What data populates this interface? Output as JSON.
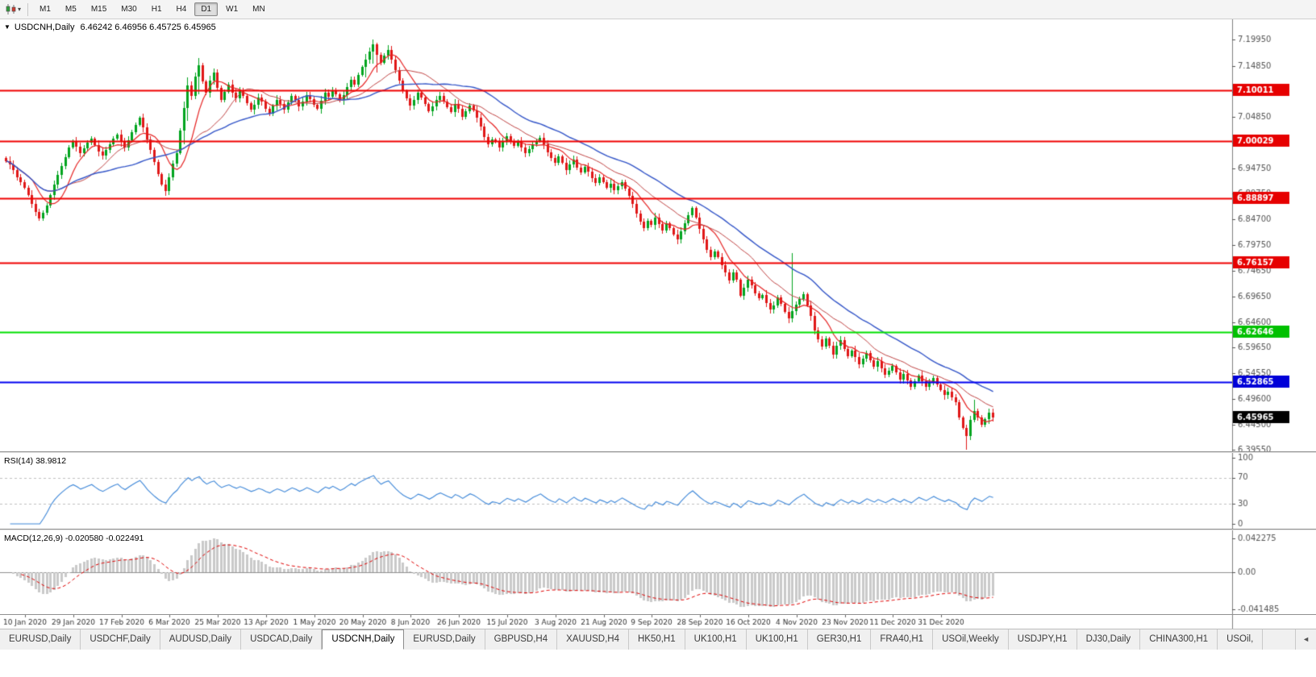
{
  "toolbar": {
    "timeframes": [
      "M1",
      "M5",
      "M15",
      "M30",
      "H1",
      "H4",
      "D1",
      "W1",
      "MN"
    ],
    "active_timeframe": "D1"
  },
  "chart": {
    "collapse_arrow": "▼",
    "title_symbol": "USDCNH,Daily",
    "title_ohlc": "6.46242 6.46956 6.45725 6.45965",
    "rsi_header": "RSI(14) 38.9812",
    "macd_header": "MACD(12,26,9) -0.020580 -0.022491"
  },
  "chart_data": {
    "type": "candlestick",
    "symbol": "USDCNH",
    "period": "Daily",
    "open": "6.46242",
    "high": "6.46956",
    "low": "6.45725",
    "close": "6.45965",
    "price_axis_ticks": [
      "7.19950",
      "7.14850",
      "7.09750",
      "7.04850",
      "6.99750",
      "6.94750",
      "6.89750",
      "6.84700",
      "6.79750",
      "6.74650",
      "6.69650",
      "6.64600",
      "6.59650",
      "6.54550",
      "6.49600",
      "6.44500",
      "6.39550"
    ],
    "date_axis_ticks": [
      "10 Jan 2020",
      "29 Jan 2020",
      "17 Feb 2020",
      "6 Mar 2020",
      "25 Mar 2020",
      "13 Apr 2020",
      "1 May 2020",
      "20 May 2020",
      "8 Jun 2020",
      "26 Jun 2020",
      "15 Jul 2020",
      "3 Aug 2020",
      "21 Aug 2020",
      "9 Sep 2020",
      "28 Sep 2020",
      "16 Oct 2020",
      "4 Nov 2020",
      "23 Nov 2020",
      "11 Dec 2020",
      "31 Dec 2020"
    ],
    "levels": [
      {
        "label": "7.10011",
        "value": 7.10011,
        "line_color": "#F00000",
        "tag_bg": "#E60000",
        "tag_text": "#FFFFFF"
      },
      {
        "label": "7.00029",
        "value": 7.00029,
        "line_color": "#F00000",
        "tag_bg": "#E60000",
        "tag_text": "#FFFFFF"
      },
      {
        "label": "6.88897",
        "value": 6.88897,
        "line_color": "#F00000",
        "tag_bg": "#E60000",
        "tag_text": "#FFFFFF"
      },
      {
        "label": "6.76157",
        "value": 6.76157,
        "line_color": "#F00000",
        "tag_bg": "#E60000",
        "tag_text": "#FFFFFF"
      },
      {
        "label": "6.62646",
        "value": 6.62646,
        "line_color": "#00E000",
        "tag_bg": "#00C000",
        "tag_text": "#FFFFFF"
      },
      {
        "label": "6.52865",
        "value": 6.52865,
        "line_color": "#0000F0",
        "tag_bg": "#0000D8",
        "tag_text": "#FFFFFF"
      }
    ],
    "current_price": {
      "label": "6.45965",
      "value": 6.45965,
      "tag_bg": "#000000",
      "tag_text": "#FFFFFF"
    },
    "first_open": 6.968,
    "closes": [
      6.962,
      6.955,
      6.944,
      6.93,
      6.92,
      6.91,
      6.895,
      6.878,
      6.862,
      6.85,
      6.86,
      6.874,
      6.895,
      6.915,
      6.934,
      6.952,
      6.97,
      6.988,
      7.0,
      6.99,
      6.977,
      6.986,
      6.997,
      7.006,
      6.993,
      6.98,
      6.972,
      6.983,
      6.995,
      7.006,
      7.014,
      6.999,
      6.989,
      7.003,
      7.018,
      7.033,
      7.046,
      7.028,
      7.004,
      6.983,
      6.96,
      6.936,
      6.916,
      6.903,
      6.93,
      6.956,
      6.978,
      7.022,
      7.065,
      7.11,
      7.09,
      7.128,
      7.15,
      7.118,
      7.095,
      7.12,
      7.135,
      7.105,
      7.082,
      7.098,
      7.112,
      7.096,
      7.084,
      7.1,
      7.09,
      7.075,
      7.062,
      7.072,
      7.086,
      7.078,
      7.064,
      7.054,
      7.07,
      7.082,
      7.073,
      7.062,
      7.076,
      7.089,
      7.081,
      7.069,
      7.078,
      7.091,
      7.083,
      7.072,
      7.064,
      7.08,
      7.095,
      7.088,
      7.101,
      7.092,
      7.081,
      7.091,
      7.106,
      7.121,
      7.112,
      7.131,
      7.146,
      7.161,
      7.176,
      7.191,
      7.17,
      7.154,
      7.169,
      7.18,
      7.161,
      7.14,
      7.119,
      7.099,
      7.084,
      7.07,
      7.081,
      7.095,
      7.087,
      7.074,
      7.059,
      7.069,
      7.082,
      7.09,
      7.079,
      7.068,
      7.058,
      7.074,
      7.064,
      7.049,
      7.059,
      7.07,
      7.061,
      7.047,
      7.029,
      7.009,
      6.994,
      7.004,
      6.999,
      6.989,
      7.0,
      7.01,
      7.001,
      6.991,
      7.0,
      6.989,
      6.977,
      6.985,
      6.995,
      7.001,
      7.008,
      6.994,
      6.979,
      6.968,
      6.958,
      6.971,
      6.959,
      6.944,
      6.955,
      6.965,
      6.949,
      6.939,
      6.95,
      6.941,
      6.929,
      6.919,
      6.93,
      6.921,
      6.909,
      6.917,
      6.904,
      6.912,
      6.92,
      6.907,
      6.893,
      6.878,
      6.858,
      6.843,
      6.83,
      6.844,
      6.836,
      6.851,
      6.838,
      6.826,
      6.839,
      6.83,
      6.818,
      6.808,
      6.824,
      6.84,
      6.856,
      6.869,
      6.851,
      6.829,
      6.808,
      6.788,
      6.773,
      6.784,
      6.773,
      6.758,
      6.743,
      6.728,
      6.744,
      6.729,
      6.698,
      6.713,
      6.729,
      6.718,
      6.703,
      6.693,
      6.699,
      6.684,
      6.67,
      6.679,
      6.694,
      6.681,
      6.666,
      6.653,
      6.667,
      6.68,
      6.691,
      6.701,
      6.679,
      6.658,
      6.629,
      6.613,
      6.598,
      6.614,
      6.599,
      6.583,
      6.599,
      6.611,
      6.594,
      6.579,
      6.59,
      6.577,
      6.563,
      6.574,
      6.585,
      6.571,
      6.558,
      6.569,
      6.556,
      6.543,
      6.551,
      6.56,
      6.547,
      6.534,
      6.545,
      6.531,
      6.519,
      6.53,
      6.541,
      6.53,
      6.519,
      6.528,
      6.536,
      6.524,
      6.513,
      6.503,
      6.51,
      6.499,
      6.489,
      6.459,
      6.438,
      6.423,
      6.454,
      6.471,
      6.459,
      6.444,
      6.456,
      6.468,
      6.4597
    ],
    "wick_spikes": {
      "9": [
        6.868,
        6.844
      ],
      "48": [
        7.078,
        6.995
      ],
      "49": [
        7.125,
        7.04
      ],
      "52": [
        7.163,
        7.092
      ],
      "97": [
        7.172,
        7.126
      ],
      "99": [
        7.1995,
        7.152
      ],
      "100": [
        7.193,
        7.136
      ],
      "212": [
        6.782,
        6.645
      ],
      "259": [
        6.445,
        6.3955
      ],
      "261": [
        6.493,
        6.449
      ]
    },
    "moving_averages": [
      {
        "period": 8,
        "color": "#E62222",
        "width": 1.2
      },
      {
        "period": 18,
        "color": "#C04444",
        "width": 1
      },
      {
        "period": 34,
        "color": "#3355C8",
        "width": 1.4
      }
    ],
    "candle_up_color": "#00A41E",
    "candle_down_color": "#E01717",
    "rsi": {
      "period": 14,
      "value": "38.9812",
      "upper": 70,
      "lower": 30,
      "axis_labels": [
        "100",
        "70",
        "30",
        "0"
      ],
      "line_color": "#3C86D8"
    },
    "macd": {
      "fast": 12,
      "slow": 26,
      "signal": 9,
      "main_value": "-0.020580",
      "signal_value": "-0.022491",
      "axis_top": "0.042275",
      "axis_zero": "0.00",
      "axis_bottom": "-0.041485",
      "hist_color": "#C9C9C9",
      "signal_color": "#E00000"
    }
  },
  "tabs": {
    "items": [
      "EURUSD,Daily",
      "USDCHF,Daily",
      "AUDUSD,Daily",
      "USDCAD,Daily",
      "USDCNH,Daily",
      "EURUSD,Daily",
      "GBPUSD,H4",
      "XAUUSD,H4",
      "HK50,H1",
      "UK100,H1",
      "UK100,H1",
      "GER30,H1",
      "FRA40,H1",
      "USOil,Weekly",
      "USDJPY,H1",
      "DJ30,Daily",
      "CHINA300,H1",
      "USOil,"
    ],
    "active_index": 4,
    "scroll_left_glyph": "◄"
  }
}
